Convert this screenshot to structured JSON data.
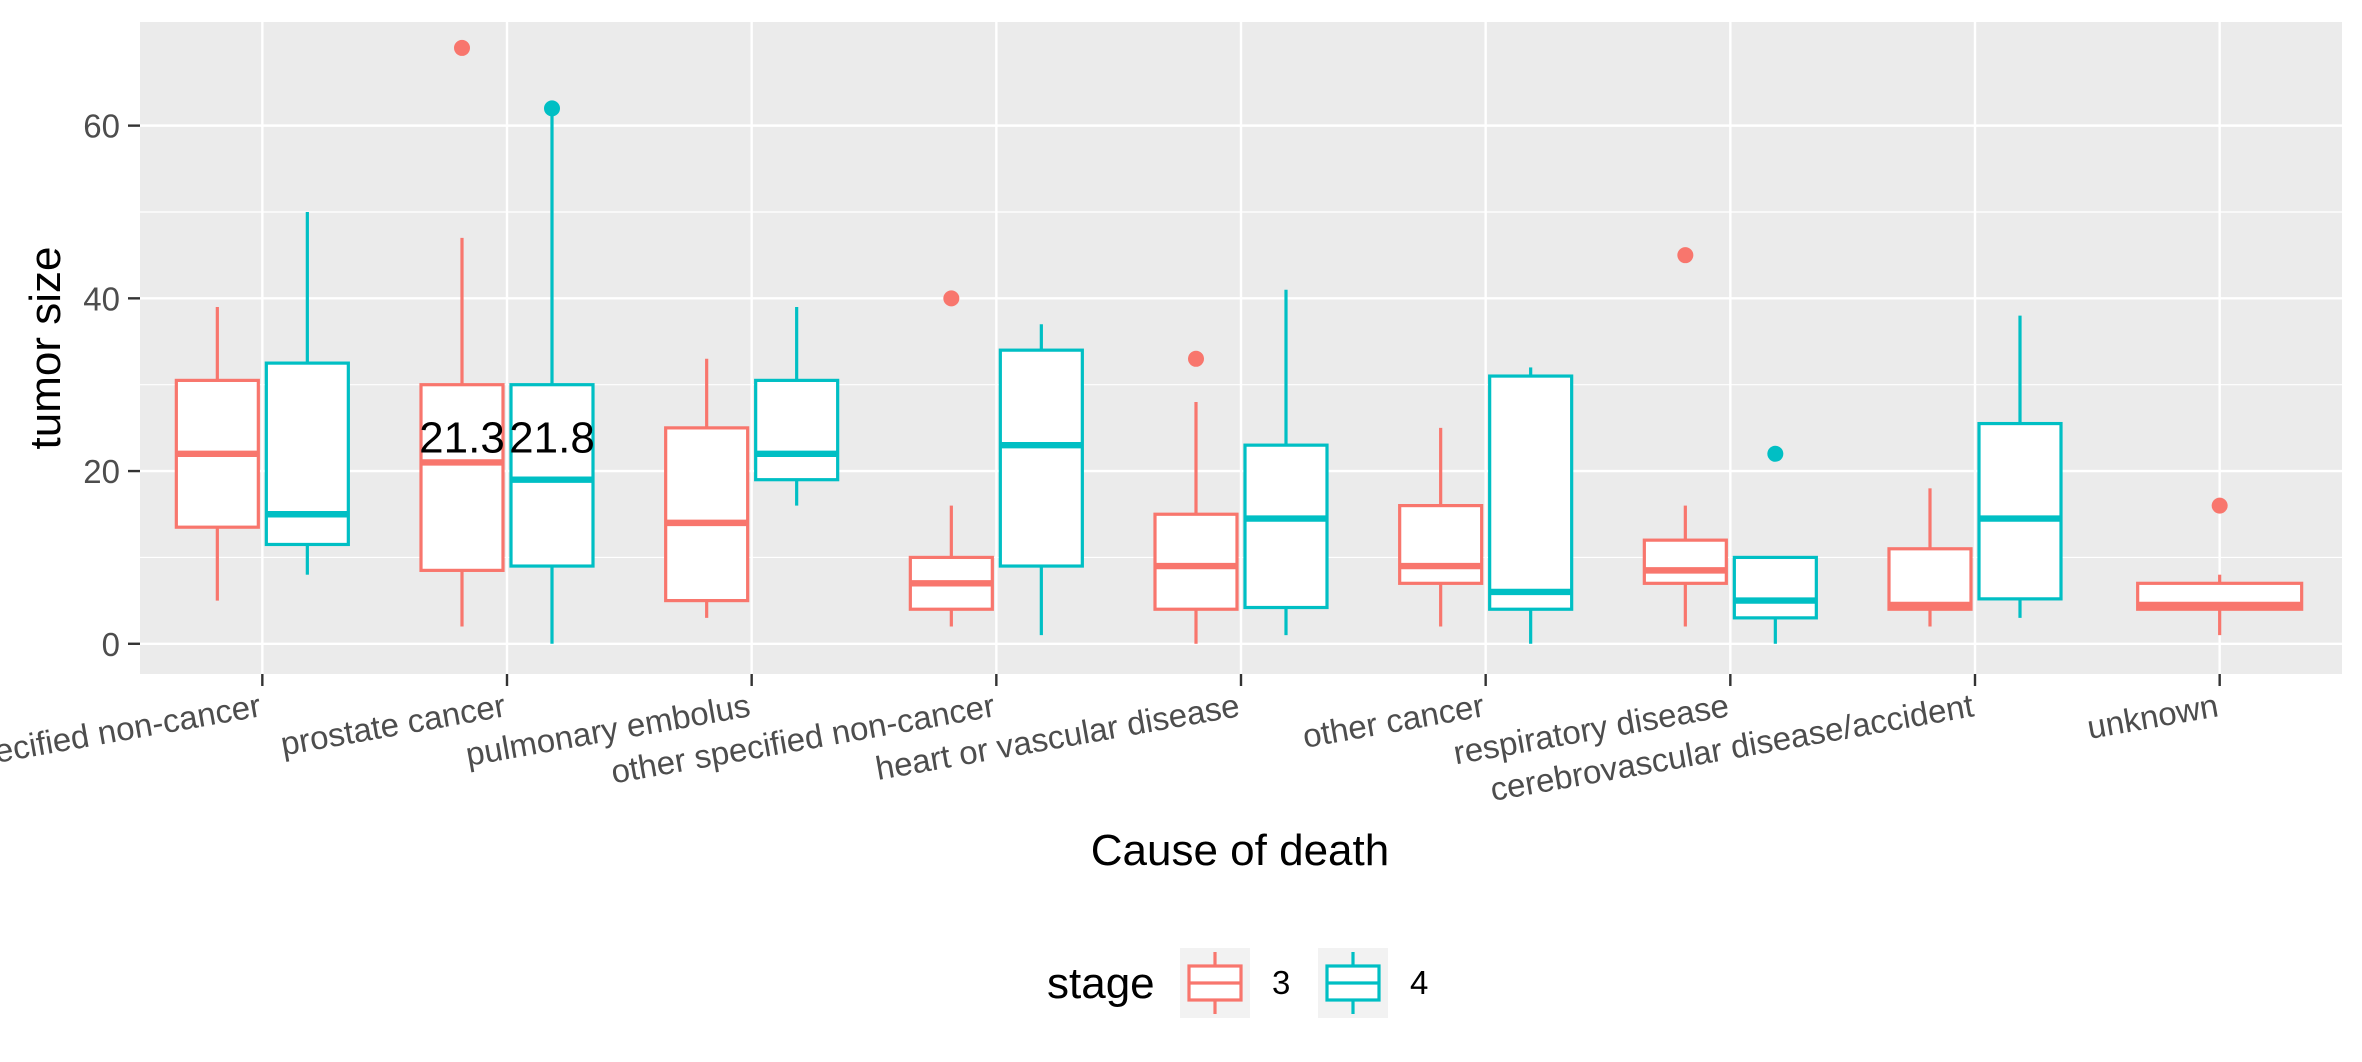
{
  "chart_data": {
    "type": "boxplot",
    "xlabel": "Cause of death",
    "ylabel": "tumor size",
    "ylim": [
      -3.5,
      72
    ],
    "yticks": [
      0,
      20,
      40,
      60
    ],
    "grid": true,
    "legend": {
      "title": "stage",
      "position": "bottom",
      "entries": [
        "3",
        "4"
      ]
    },
    "categories": [
      "unspecified non-cancer",
      "prostate cancer",
      "pulmonary embolus",
      "other specified non-cancer",
      "heart or vascular disease",
      "other cancer",
      "respiratory disease",
      "cerebrovascular disease/accident",
      "unknown"
    ],
    "series": [
      {
        "name": "3",
        "color": "#F8766D",
        "boxes": [
          {
            "category": 0,
            "low": 5,
            "q1": 13.5,
            "median": 22,
            "q3": 30.5,
            "high": 39,
            "outliers": []
          },
          {
            "category": 1,
            "low": 2,
            "q1": 8.5,
            "median": 21,
            "q3": 30,
            "high": 47,
            "outliers": [
              69
            ]
          },
          {
            "category": 2,
            "low": 3,
            "q1": 5,
            "median": 14,
            "q3": 25,
            "high": 33,
            "outliers": []
          },
          {
            "category": 3,
            "low": 2,
            "q1": 4,
            "median": 7,
            "q3": 10,
            "high": 16,
            "outliers": [
              40
            ]
          },
          {
            "category": 4,
            "low": 0,
            "q1": 4,
            "median": 9,
            "q3": 15,
            "high": 28,
            "outliers": [
              33
            ]
          },
          {
            "category": 5,
            "low": 2,
            "q1": 7,
            "median": 9,
            "q3": 16,
            "high": 25,
            "outliers": []
          },
          {
            "category": 6,
            "low": 2,
            "q1": 7,
            "median": 8.5,
            "q3": 12,
            "high": 16,
            "outliers": [
              45
            ]
          },
          {
            "category": 7,
            "low": 2,
            "q1": 4,
            "median": 4.5,
            "q3": 11,
            "high": 18,
            "outliers": []
          },
          {
            "category": 8,
            "low": 1,
            "q1": 4,
            "median": 4.5,
            "q3": 7,
            "high": 8,
            "outliers": [
              16
            ]
          }
        ]
      },
      {
        "name": "4",
        "color": "#00BFC4",
        "boxes": [
          {
            "category": 0,
            "low": 8,
            "q1": 11.5,
            "median": 15,
            "q3": 32.5,
            "high": 50,
            "outliers": []
          },
          {
            "category": 1,
            "low": 0,
            "q1": 9,
            "median": 19,
            "q3": 30,
            "high": 62,
            "outliers": [
              62
            ]
          },
          {
            "category": 2,
            "low": 16,
            "q1": 19,
            "median": 22,
            "q3": 30.5,
            "high": 39,
            "outliers": []
          },
          {
            "category": 3,
            "low": 1,
            "q1": 9,
            "median": 23,
            "q3": 34,
            "high": 37,
            "outliers": []
          },
          {
            "category": 4,
            "low": 1,
            "q1": 4.2,
            "median": 14.5,
            "q3": 23,
            "high": 41,
            "outliers": []
          },
          {
            "category": 5,
            "low": 0,
            "q1": 4,
            "median": 6,
            "q3": 31,
            "high": 32,
            "outliers": []
          },
          {
            "category": 6,
            "low": 0,
            "q1": 3,
            "median": 5,
            "q3": 10,
            "high": 10,
            "outliers": [
              22
            ]
          },
          {
            "category": 7,
            "low": 3,
            "q1": 5.2,
            "median": 14.5,
            "q3": 25.5,
            "high": 38,
            "outliers": []
          }
        ]
      }
    ],
    "annotations": [
      {
        "text": "21.3",
        "category": 1,
        "series": "3",
        "y": 24
      },
      {
        "text": "21.8",
        "category": 1,
        "series": "4",
        "y": 24
      }
    ]
  }
}
